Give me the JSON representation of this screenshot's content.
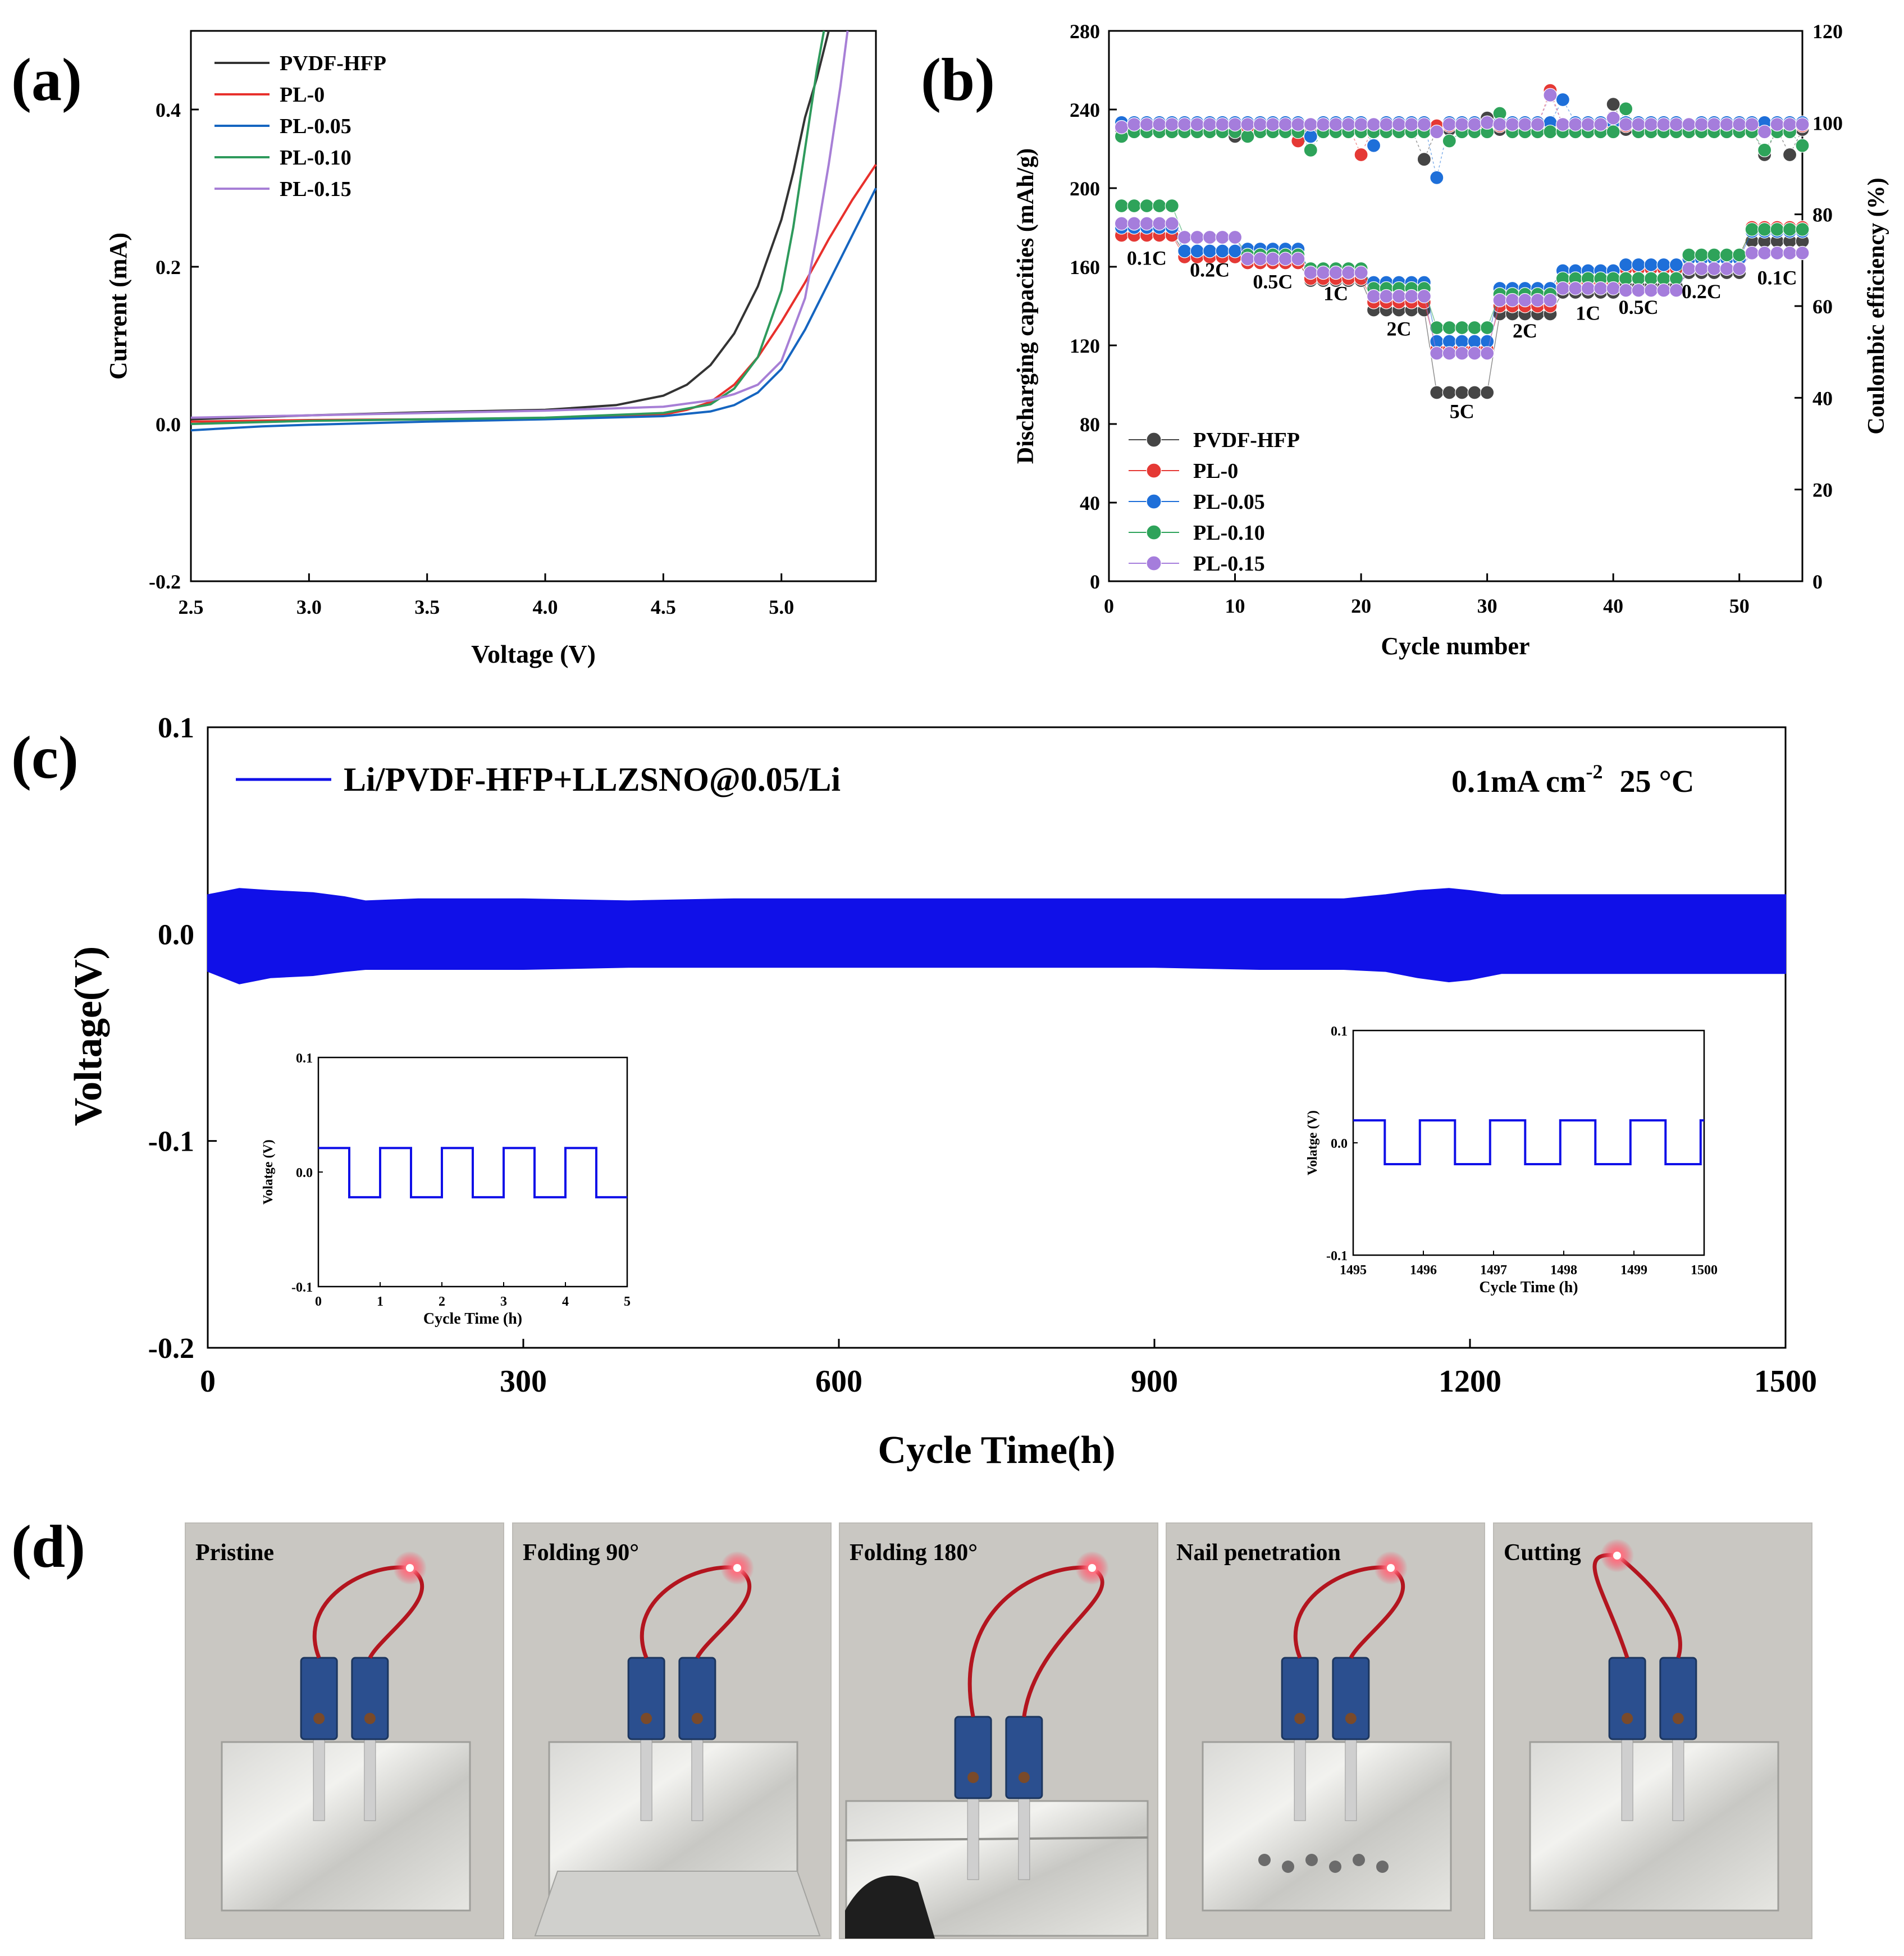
{
  "panels": {
    "a": "(a)",
    "b": "(b)",
    "c": "(c)",
    "d": "(d)"
  },
  "chart_data": [
    {
      "id": "a",
      "type": "line",
      "xlabel": "Voltage (V)",
      "ylabel": "Current (mA)",
      "xlim": [
        2.5,
        5.4
      ],
      "ylim": [
        -0.2,
        0.5
      ],
      "xticks": [
        2.5,
        3.0,
        3.5,
        4.0,
        4.5,
        5.0
      ],
      "xtick_labels": [
        "2.5",
        "3.0",
        "3.5",
        "4.0",
        "4.5",
        "5.0"
      ],
      "yticks": [
        -0.2,
        0.0,
        0.2,
        0.4
      ],
      "ytick_labels": [
        "-0.2",
        "0.0",
        "0.2",
        "0.4"
      ],
      "legend_position": "top-left",
      "series": [
        {
          "name": "PVDF-HFP",
          "color": "#333333",
          "x": [
            2.5,
            3.0,
            3.5,
            4.0,
            4.3,
            4.5,
            4.6,
            4.7,
            4.8,
            4.9,
            5.0,
            5.05,
            5.1,
            5.15,
            5.2
          ],
          "y": [
            0.006,
            0.011,
            0.015,
            0.018,
            0.024,
            0.036,
            0.05,
            0.075,
            0.115,
            0.175,
            0.26,
            0.32,
            0.39,
            0.44,
            0.5
          ]
        },
        {
          "name": "PL-0",
          "color": "#e8302c",
          "x": [
            2.5,
            3.0,
            3.5,
            4.0,
            4.5,
            4.6,
            4.7,
            4.8,
            4.9,
            5.0,
            5.1,
            5.2,
            5.3,
            5.4
          ],
          "y": [
            0.003,
            0.005,
            0.006,
            0.007,
            0.012,
            0.018,
            0.028,
            0.05,
            0.085,
            0.13,
            0.18,
            0.235,
            0.285,
            0.33
          ]
        },
        {
          "name": "PL-0.05",
          "color": "#1565c0",
          "x": [
            2.5,
            2.8,
            3.0,
            3.5,
            4.0,
            4.5,
            4.7,
            4.8,
            4.9,
            5.0,
            5.1,
            5.2,
            5.3,
            5.4
          ],
          "y": [
            -0.008,
            -0.003,
            -0.001,
            0.003,
            0.006,
            0.01,
            0.016,
            0.024,
            0.04,
            0.07,
            0.12,
            0.18,
            0.24,
            0.3
          ]
        },
        {
          "name": "PL-0.10",
          "color": "#2e9a5c",
          "x": [
            2.5,
            3.0,
            3.5,
            4.0,
            4.5,
            4.7,
            4.8,
            4.9,
            5.0,
            5.05,
            5.1,
            5.15,
            5.18
          ],
          "y": [
            0.0,
            0.004,
            0.006,
            0.008,
            0.014,
            0.025,
            0.045,
            0.085,
            0.17,
            0.25,
            0.35,
            0.45,
            0.5
          ]
        },
        {
          "name": "PL-0.15",
          "color": "#a77fd6",
          "x": [
            2.5,
            3.0,
            3.5,
            4.0,
            4.5,
            4.7,
            4.8,
            4.9,
            5.0,
            5.1,
            5.15,
            5.2,
            5.25,
            5.28
          ],
          "y": [
            0.008,
            0.011,
            0.014,
            0.017,
            0.022,
            0.03,
            0.038,
            0.05,
            0.08,
            0.16,
            0.24,
            0.33,
            0.43,
            0.5
          ]
        }
      ]
    },
    {
      "id": "b",
      "type": "scatter",
      "xlabel": "Cycle number",
      "ylabel": "Discharging capacities (mAh/g)",
      "ylabel_right": "Coulombic efficiency (%)",
      "xlim": [
        0,
        55
      ],
      "ylim": [
        0,
        280
      ],
      "ylim_right": [
        0,
        120
      ],
      "xticks": [
        0,
        10,
        20,
        30,
        40,
        50
      ],
      "xtick_labels": [
        "0",
        "10",
        "20",
        "30",
        "40",
        "50"
      ],
      "yticks": [
        0,
        40,
        80,
        120,
        160,
        200,
        240,
        280
      ],
      "ytick_labels": [
        "0",
        "40",
        "80",
        "120",
        "160",
        "200",
        "240",
        "280"
      ],
      "yticks_right": [
        0,
        20,
        40,
        60,
        80,
        100,
        120
      ],
      "ytick_labels_right": [
        "0",
        "20",
        "40",
        "60",
        "80",
        "100",
        "120"
      ],
      "rate_labels": [
        {
          "text": "0.1C",
          "x": 3,
          "y": 161
        },
        {
          "text": "0.2C",
          "x": 8,
          "y": 155
        },
        {
          "text": "0.5C",
          "x": 13,
          "y": 149
        },
        {
          "text": "1C",
          "x": 18,
          "y": 143
        },
        {
          "text": "2C",
          "x": 23,
          "y": 125
        },
        {
          "text": "5C",
          "x": 28,
          "y": 83
        },
        {
          "text": "2C",
          "x": 33,
          "y": 124
        },
        {
          "text": "1C",
          "x": 38,
          "y": 133
        },
        {
          "text": "0.5C",
          "x": 42,
          "y": 136
        },
        {
          "text": "0.2C",
          "x": 47,
          "y": 144
        },
        {
          "text": "0.1C",
          "x": 53,
          "y": 151
        }
      ],
      "legend_position": "bottom-left",
      "series": [
        {
          "name": "PVDF-HFP",
          "color": "#454545",
          "capacity": [
            [
              1,
              5,
              177
            ],
            [
              6,
              10,
              167
            ],
            [
              11,
              15,
              162
            ],
            [
              16,
              20,
              153
            ],
            [
              21,
              25,
              138
            ],
            [
              26,
              30,
              96
            ],
            [
              31,
              35,
              136
            ],
            [
              36,
              40,
              147
            ],
            [
              41,
              45,
              150
            ],
            [
              46,
              50,
              157
            ],
            [
              51,
              55,
              173
            ]
          ],
          "ce_points": [
            [
              10,
              97
            ],
            [
              15,
              96
            ],
            [
              25,
              92
            ],
            [
              30,
              101
            ],
            [
              40,
              104
            ],
            [
              52,
              93
            ],
            [
              54,
              93
            ]
          ]
        },
        {
          "name": "PL-0",
          "color": "#e53935",
          "capacity": [
            [
              1,
              5,
              176
            ],
            [
              6,
              10,
              165
            ],
            [
              11,
              15,
              162
            ],
            [
              16,
              20,
              154
            ],
            [
              21,
              25,
              142
            ],
            [
              26,
              30,
              118
            ],
            [
              31,
              35,
              140
            ],
            [
              36,
              40,
              152
            ],
            [
              41,
              45,
              159
            ],
            [
              46,
              50,
              165
            ],
            [
              51,
              55,
              180
            ]
          ],
          "ce_points": [
            [
              3,
              100
            ],
            [
              11,
              99
            ],
            [
              15,
              96
            ],
            [
              20,
              93
            ],
            [
              35,
              107
            ],
            [
              50,
              98
            ]
          ]
        },
        {
          "name": "PL-0.05",
          "color": "#1e6fd9",
          "capacity": [
            [
              1,
              5,
              180
            ],
            [
              6,
              10,
              168
            ],
            [
              11,
              15,
              169
            ],
            [
              16,
              20,
              157
            ],
            [
              21,
              25,
              152
            ],
            [
              26,
              30,
              122
            ],
            [
              31,
              35,
              149
            ],
            [
              36,
              40,
              158
            ],
            [
              41,
              45,
              161
            ],
            [
              46,
              50,
              164
            ],
            [
              51,
              55,
              178
            ]
          ],
          "ce_points": [
            [
              10,
              100
            ],
            [
              16,
              97
            ],
            [
              21,
              95
            ],
            [
              26,
              88
            ],
            [
              36,
              105
            ],
            [
              46,
              99
            ],
            [
              55,
              100
            ]
          ]
        },
        {
          "name": "PL-0.10",
          "color": "#2ea35a",
          "capacity": [
            [
              1,
              5,
              191
            ],
            [
              6,
              10,
              175
            ],
            [
              11,
              15,
              166
            ],
            [
              16,
              20,
              159
            ],
            [
              21,
              25,
              149
            ],
            [
              26,
              30,
              129
            ],
            [
              31,
              35,
              146
            ],
            [
              36,
              40,
              154
            ],
            [
              41,
              45,
              154
            ],
            [
              46,
              50,
              166
            ],
            [
              51,
              55,
              179
            ]
          ],
          "ce_points": [
            [
              1,
              97
            ],
            [
              11,
              97
            ],
            [
              16,
              94
            ],
            [
              27,
              96
            ],
            [
              31,
              102
            ],
            [
              41,
              103
            ],
            [
              52,
              94
            ],
            [
              55,
              95
            ]
          ]
        },
        {
          "name": "PL-0.15",
          "color": "#a57ddc",
          "capacity": [
            [
              1,
              5,
              182
            ],
            [
              6,
              10,
              175
            ],
            [
              11,
              15,
              164
            ],
            [
              16,
              20,
              157
            ],
            [
              21,
              25,
              145
            ],
            [
              26,
              30,
              116
            ],
            [
              31,
              35,
              143
            ],
            [
              36,
              40,
              149
            ],
            [
              41,
              45,
              148
            ],
            [
              46,
              50,
              159
            ],
            [
              51,
              55,
              167
            ]
          ],
          "ce_points": [
            [
              1,
              99
            ],
            [
              26,
              98
            ],
            [
              30,
              100
            ],
            [
              35,
              106
            ],
            [
              40,
              101
            ],
            [
              52,
              98
            ]
          ]
        }
      ]
    },
    {
      "id": "c",
      "type": "line",
      "xlabel": "Cycle Time(h)",
      "ylabel": "Voltage(V)",
      "xlim": [
        0,
        1500
      ],
      "ylim": [
        -0.2,
        0.1
      ],
      "xticks": [
        0,
        300,
        600,
        900,
        1200,
        1500
      ],
      "xtick_labels": [
        "0",
        "300",
        "600",
        "900",
        "1200",
        "1500"
      ],
      "yticks": [
        -0.2,
        -0.1,
        0.0,
        0.1
      ],
      "ytick_labels": [
        "-0.2",
        "-0.1",
        "0.0",
        "0.1"
      ],
      "legend": "Li/PVDF-HFP+LLZSNO@0.05/Li",
      "condition_text": "0.1mA cm",
      "condition_sup": "-2",
      "condition_temp": "25 °C",
      "series_color": "#1010e8",
      "envelope": {
        "x": [
          0,
          30,
          60,
          100,
          130,
          150,
          200,
          300,
          400,
          500,
          600,
          700,
          800,
          900,
          1000,
          1080,
          1120,
          1150,
          1180,
          1200,
          1230,
          1300,
          1400,
          1500
        ],
        "upper": [
          0.019,
          0.022,
          0.021,
          0.02,
          0.018,
          0.016,
          0.017,
          0.017,
          0.016,
          0.017,
          0.017,
          0.017,
          0.017,
          0.017,
          0.017,
          0.017,
          0.019,
          0.021,
          0.022,
          0.021,
          0.019,
          0.019,
          0.019,
          0.019
        ],
        "lower": [
          -0.018,
          -0.024,
          -0.021,
          -0.02,
          -0.018,
          -0.017,
          -0.017,
          -0.017,
          -0.016,
          -0.016,
          -0.016,
          -0.016,
          -0.016,
          -0.016,
          -0.017,
          -0.017,
          -0.018,
          -0.021,
          -0.023,
          -0.022,
          -0.019,
          -0.019,
          -0.019,
          -0.019
        ]
      },
      "insets": [
        {
          "xlabel": "Cycle Time (h)",
          "ylabel": "Volatge (V)",
          "xlim": [
            0,
            5
          ],
          "ylim": [
            -0.1,
            0.1
          ],
          "xticks": [
            0,
            1,
            2,
            3,
            4,
            5
          ],
          "xtick_labels": [
            "0",
            "1",
            "2",
            "3",
            "4",
            "5"
          ],
          "yticks": [
            -0.1,
            0.0,
            0.1
          ],
          "ytick_labels": [
            "-0.1",
            "0.0",
            "0.1"
          ],
          "high": 0.021,
          "low": -0.022,
          "period": 1,
          "switch_offset": 0.5
        },
        {
          "xlabel": "Cycle Time (h)",
          "ylabel": "Volatge (V)",
          "xlim": [
            1495,
            1500
          ],
          "ylim": [
            -0.1,
            0.1
          ],
          "xticks": [
            1495,
            1496,
            1497,
            1498,
            1499,
            1500
          ],
          "xtick_labels": [
            "1495",
            "1496",
            "1497",
            "1498",
            "1499",
            "1500"
          ],
          "yticks": [
            -0.1,
            0.0,
            0.1
          ],
          "ytick_labels": [
            "-0.1",
            "0.0",
            "0.1"
          ],
          "high": 0.02,
          "low": -0.019,
          "period": 1,
          "switch_offset": 0.45
        }
      ]
    }
  ],
  "photos": {
    "captions": [
      "Pristine",
      "Folding 90°",
      "Folding 180°",
      "Nail penetration",
      "Cutting"
    ]
  }
}
